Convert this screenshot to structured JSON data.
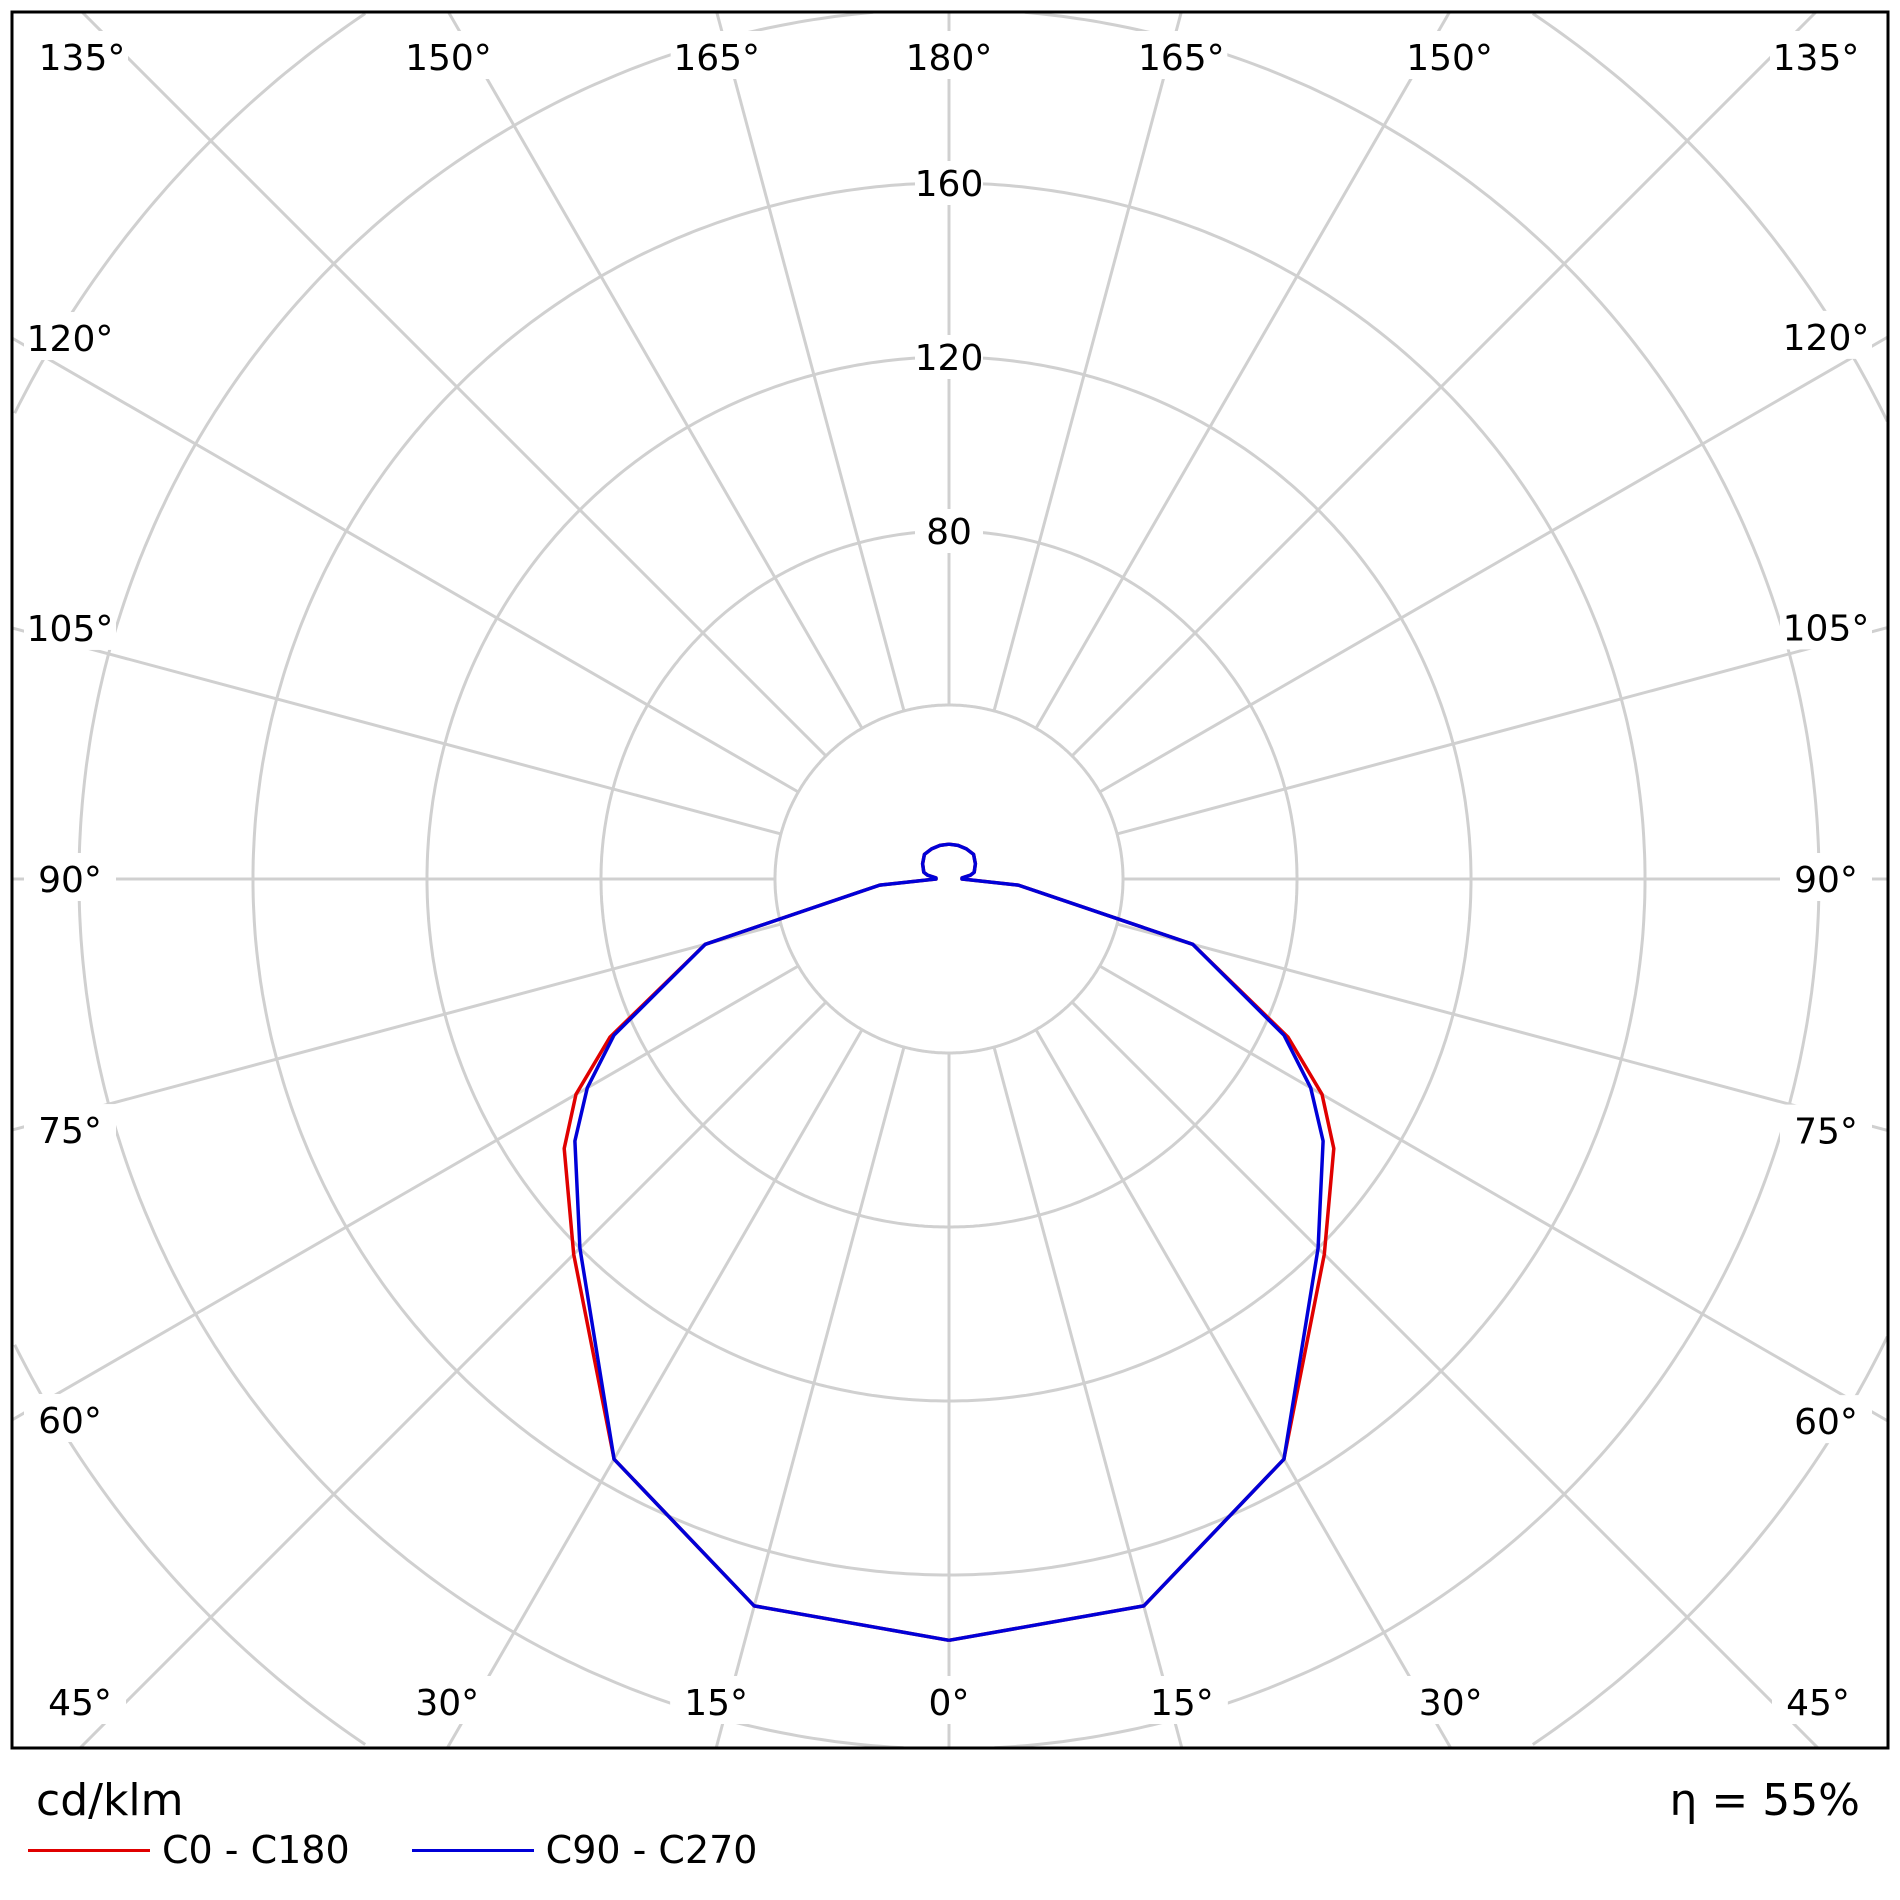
{
  "chart_data": {
    "type": "polar",
    "unit_label": "cd/klm",
    "efficiency_label": "η = 55%",
    "radial_ticks": [
      80,
      120,
      160
    ],
    "radial_rings": [
      40,
      80,
      120,
      160,
      200,
      240
    ],
    "angle_labels": {
      "top": [
        "135°",
        "150°",
        "165°",
        "180°",
        "165°",
        "150°",
        "135°"
      ],
      "left": [
        "120°",
        "105°",
        "90°",
        "75°",
        "60°"
      ],
      "right": [
        "120°",
        "105°",
        "90°",
        "75°",
        "60°"
      ],
      "bottom": [
        "45°",
        "30°",
        "15°",
        "0°",
        "15°",
        "30°",
        "45°"
      ]
    },
    "grid": true,
    "legend_placement": "bottom-left",
    "angles": [
      0,
      15,
      30,
      45,
      55,
      60,
      65,
      75,
      85,
      90,
      95,
      100,
      105,
      120,
      135,
      150,
      165,
      180
    ],
    "series": [
      {
        "name": "C0 - C180",
        "color": "#e00000",
        "values": [
          175,
          173,
          154,
          122,
          108,
          99,
          86,
          58,
          16,
          3,
          3,
          5,
          6,
          7,
          8,
          8,
          8,
          8
        ]
      },
      {
        "name": "C90 - C270",
        "color": "#0000d8",
        "values": [
          175,
          173,
          154,
          120,
          105,
          96,
          85,
          58,
          16,
          3,
          3,
          5,
          6,
          7,
          8,
          8,
          8,
          8
        ]
      }
    ]
  }
}
